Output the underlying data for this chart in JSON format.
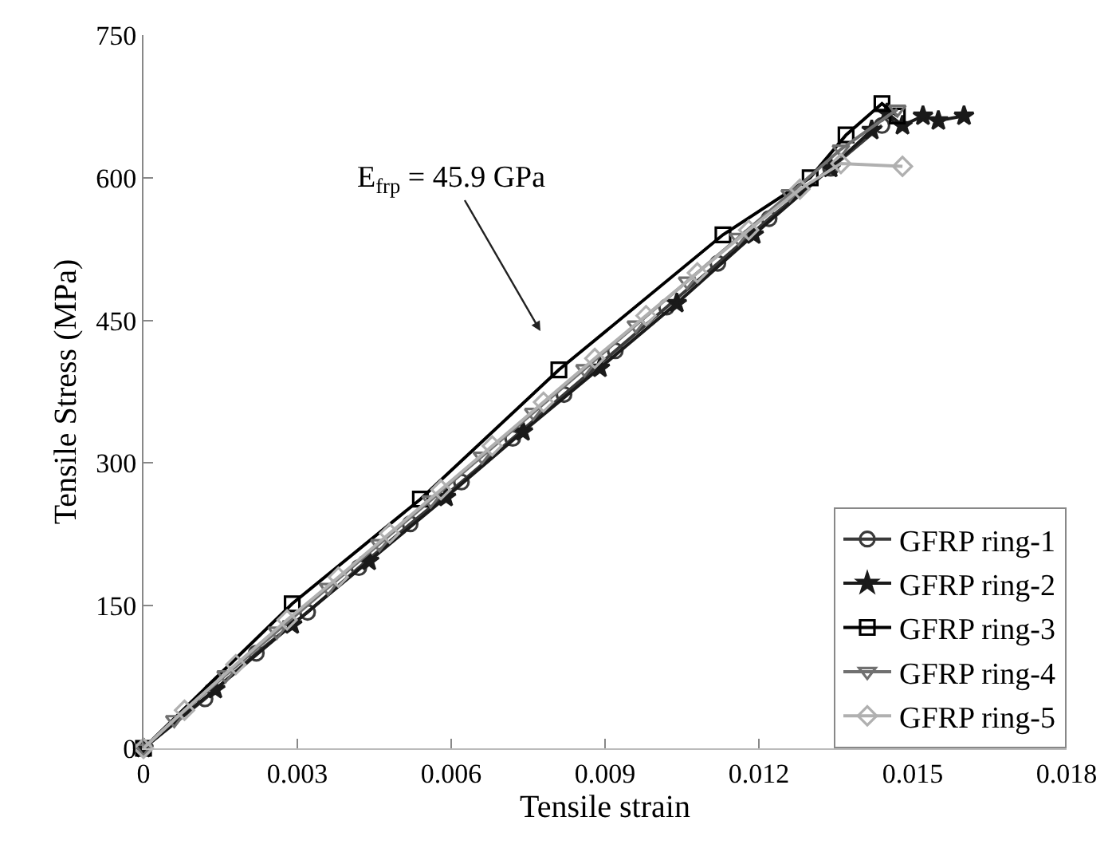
{
  "chart_data": {
    "type": "line",
    "xlabel": "Tensile strain",
    "ylabel": "Tensile Stress (MPa)",
    "xlim": [
      0,
      0.018
    ],
    "xticks": [
      0,
      0.003,
      0.006,
      0.009,
      0.012,
      0.015,
      0.018
    ],
    "ylim": [
      0,
      750
    ],
    "yticks": [
      0,
      150,
      300,
      450,
      600,
      750
    ],
    "grid": false,
    "legend": "bottom right",
    "line_style": "solid",
    "annotations": [
      "E$_{frp}$ = 45.9 GPa"
    ],
    "series": [
      {
        "name": "GFRP ring-1",
        "color": "#3a3a3a",
        "marker": "circle",
        "x": [
          0,
          0.0012,
          0.0022,
          0.0032,
          0.0042,
          0.0052,
          0.0062,
          0.0072,
          0.0082,
          0.0092,
          0.0102,
          0.0112,
          0.0122,
          0.0134,
          0.0144
        ],
        "values": [
          0,
          52,
          100,
          143,
          190,
          236,
          280,
          326,
          372,
          418,
          464,
          510,
          557,
          610,
          655
        ]
      },
      {
        "name": "GFRP ring-2",
        "color": "#1a1a1a",
        "marker": "star",
        "x": [
          0,
          0.0014,
          0.0029,
          0.0044,
          0.0059,
          0.0074,
          0.0089,
          0.0104,
          0.0119,
          0.0134,
          0.0142,
          0.0145,
          0.0148,
          0.0152,
          0.0155,
          0.016
        ],
        "values": [
          0,
          62,
          130,
          197,
          264,
          333,
          400,
          468,
          540,
          610,
          650,
          668,
          655,
          665,
          660,
          665
        ]
      },
      {
        "name": "GFRP ring-3",
        "color": "#000000",
        "marker": "square",
        "x": [
          0,
          0.0029,
          0.0054,
          0.0081,
          0.0113,
          0.013,
          0.0137,
          0.0144,
          0.0147
        ],
        "values": [
          0,
          152,
          262,
          398,
          540,
          600,
          645,
          678,
          665
        ]
      },
      {
        "name": "GFRP ring-4",
        "color": "#707070",
        "marker": "triangle",
        "x": [
          0,
          0.0006,
          0.0016,
          0.0026,
          0.0036,
          0.0046,
          0.0056,
          0.0066,
          0.0076,
          0.0086,
          0.0096,
          0.0106,
          0.0116,
          0.0126,
          0.0136,
          0.0147
        ],
        "values": [
          0,
          30,
          77,
          123,
          169,
          215,
          261,
          307,
          353,
          399,
          445,
          491,
          537,
          583,
          630,
          672
        ]
      },
      {
        "name": "GFRP ring-5",
        "color": "#b0b0b0",
        "marker": "diamond",
        "x": [
          0,
          0.0008,
          0.0018,
          0.0028,
          0.0038,
          0.0048,
          0.0058,
          0.0068,
          0.0078,
          0.0088,
          0.0098,
          0.0108,
          0.0118,
          0.0128,
          0.0136,
          0.0148
        ],
        "values": [
          0,
          40,
          88,
          135,
          180,
          226,
          272,
          318,
          364,
          410,
          455,
          500,
          545,
          588,
          615,
          612
        ]
      }
    ]
  }
}
